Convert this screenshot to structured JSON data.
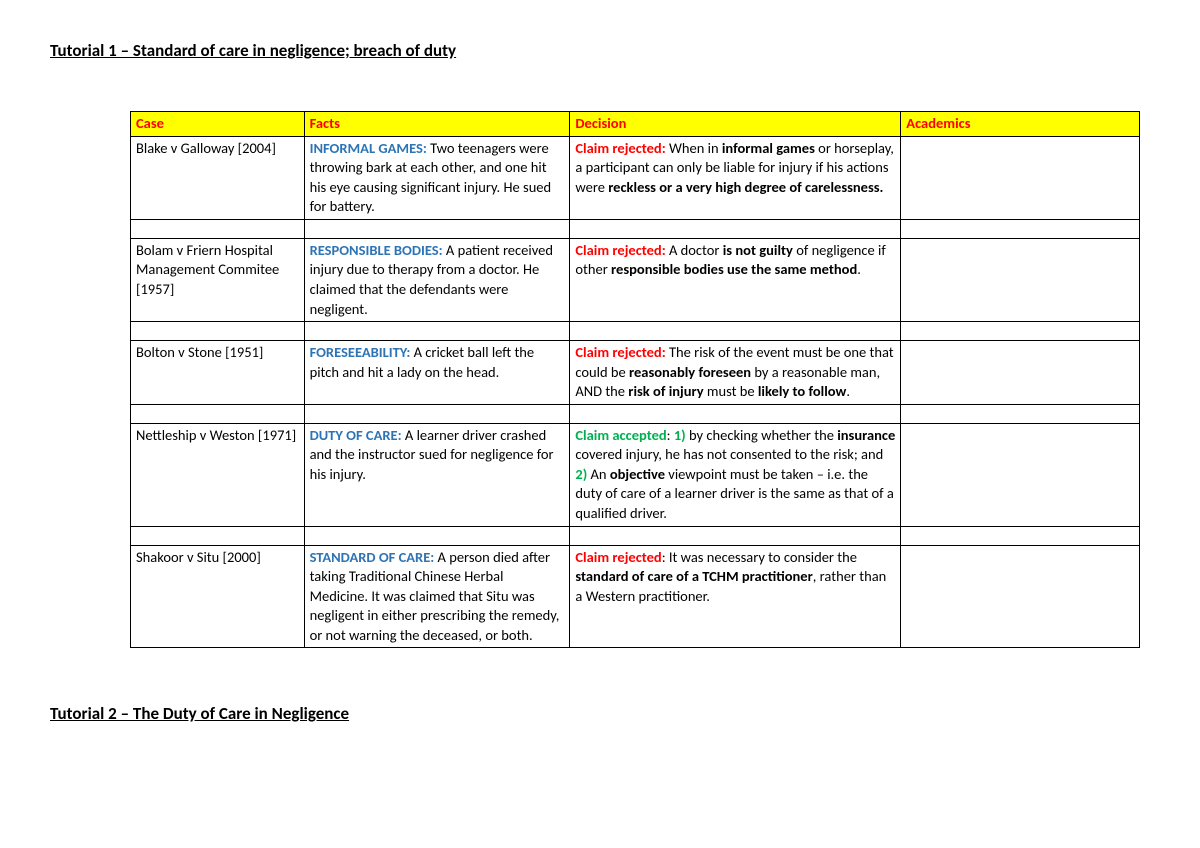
{
  "headings": {
    "h1": "Tutorial 1 – Standard of care in negligence; breach of duty",
    "h2": "Tutorial 2 – The Duty of Care in Negligence"
  },
  "headers": {
    "case": "Case",
    "facts": "Facts",
    "decision": "Decision",
    "academics": "Academics"
  },
  "colors": {
    "header_bg": "#ffff00",
    "header_text": "#ff0000",
    "keyword_blue": "#2e74b5",
    "claim_rejected": "#ff0000",
    "claim_accepted": "#00b050",
    "body_text": "#000000",
    "page_bg": "#ffffff",
    "border": "#000000"
  },
  "rows": [
    {
      "case": "Blake v Galloway [2004]",
      "facts_keyword": "INFORMAL GAMES:",
      "facts_text": " Two teenagers were throwing bark at each other, and one hit his eye causing significant injury. He sued for battery.",
      "decision_claim": "Claim rejected:",
      "decision_claim_color": "red",
      "decision_parts": [
        {
          "t": " When in "
        },
        {
          "t": "informal games",
          "b": true
        },
        {
          "t": " or horseplay, a participant can only be liable for injury if his actions were "
        },
        {
          "t": "reckless or a very high degree of carelessness.",
          "b": true
        }
      ]
    },
    {
      "case": "Bolam v Friern Hospital Management Commitee [1957]",
      "facts_keyword": "RESPONSIBLE BODIES:",
      "facts_text": " A patient received injury due to therapy from a doctor. He claimed that the defendants were negligent.",
      "decision_claim": "Claim rejected:",
      "decision_claim_color": "red",
      "decision_parts": [
        {
          "t": " A doctor "
        },
        {
          "t": "is not guilty",
          "b": true
        },
        {
          "t": " of negligence if other "
        },
        {
          "t": "responsible bodies use the same method",
          "b": true
        },
        {
          "t": "."
        }
      ]
    },
    {
      "case": "Bolton v Stone [1951]",
      "facts_keyword": "FORESEEABILITY:",
      "facts_text": " A cricket ball left the pitch and hit a lady on the head.",
      "decision_claim": "Claim rejected:",
      "decision_claim_color": "red",
      "decision_parts": [
        {
          "t": " The risk of the event must be one that could be "
        },
        {
          "t": "reasonably foreseen",
          "b": true
        },
        {
          "t": " by a reasonable man, AND the "
        },
        {
          "t": "risk of injury",
          "b": true
        },
        {
          "t": " must be "
        },
        {
          "t": "likely to follow",
          "b": true
        },
        {
          "t": "."
        }
      ]
    },
    {
      "case": "Nettleship v Weston [1971]",
      "facts_keyword": "DUTY OF CARE:",
      "facts_text": " A learner driver crashed and the instructor sued for negligence for his injury.",
      "decision_claim": "Claim accepted",
      "decision_claim_color": "green",
      "decision_parts": [
        {
          "t": ": "
        },
        {
          "t": "1)",
          "b": true,
          "green": true
        },
        {
          "t": " by checking whether the "
        },
        {
          "t": "insurance",
          "b": true
        },
        {
          "t": " covered injury, he has not consented to the risk; and "
        },
        {
          "t": "2)",
          "b": true,
          "green": true
        },
        {
          "t": " An "
        },
        {
          "t": "objective",
          "b": true
        },
        {
          "t": " viewpoint must be taken – i.e. the duty of care of a learner driver is the same as that of a qualified driver."
        }
      ]
    },
    {
      "case": "Shakoor v Situ [2000]",
      "facts_keyword": "STANDARD OF CARE:",
      "facts_text": " A person died after taking Traditional Chinese Herbal Medicine. It was claimed that Situ was negligent in either prescribing the remedy, or not warning the deceased, or both.",
      "decision_claim": "Claim rejected",
      "decision_claim_color": "red",
      "decision_parts": [
        {
          "t": ": It was necessary to consider the "
        },
        {
          "t": "standard of care of a TCHM practitioner",
          "b": true
        },
        {
          "t": ", rather than a Western practitioner."
        }
      ]
    }
  ]
}
